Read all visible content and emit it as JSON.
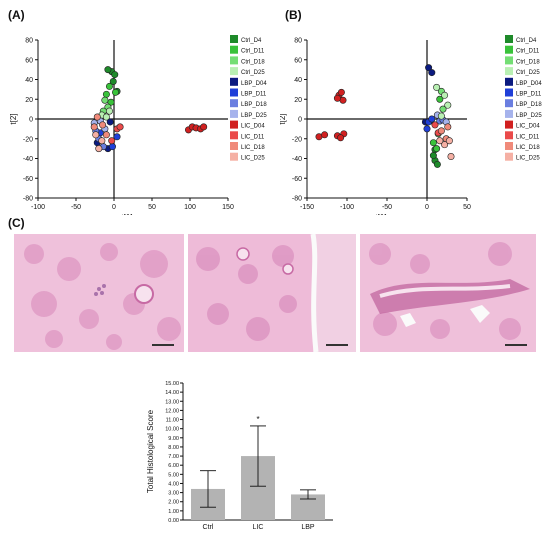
{
  "labels": {
    "a": "(A)",
    "b": "(B)",
    "c": "(C)"
  },
  "colors": {
    "Ctrl_D4": "#1e8a2a",
    "Ctrl_D11": "#39c23a",
    "Ctrl_D18": "#74de74",
    "Ctrl_D25": "#b9f0b3",
    "LBP_D04": "#0b1a80",
    "LBP_D11": "#1f3fd8",
    "LBP_D18": "#6a7ee0",
    "LBP_D25": "#a6b3ec",
    "LIC_D04": "#d12020",
    "LIC_D11": "#ea4a4a",
    "LIC_D18": "#f08a7a",
    "LIC_D25": "#f5b0a4"
  },
  "legend": [
    "Ctrl_D4",
    "Ctrl_D11",
    "Ctrl_D18",
    "Ctrl_D25",
    "LBP_D04",
    "LBP_D11",
    "LBP_D18",
    "LBP_D25",
    "LIC_D04",
    "LIC_D11",
    "LIC_D18",
    "LIC_D25"
  ],
  "chart_data": [
    {
      "type": "scatter",
      "panel": "A",
      "xlabel": "t[1]",
      "ylabel": "t[2]",
      "xlim": [
        -100,
        150
      ],
      "ylim": [
        -80,
        80
      ],
      "xticks": [
        -100,
        -50,
        0,
        50,
        100,
        150
      ],
      "yticks": [
        80,
        60,
        40,
        20,
        0,
        -20,
        -40,
        -60,
        -80
      ],
      "points": [
        {
          "g": "Ctrl_D4",
          "x": -3,
          "y": 48
        },
        {
          "g": "Ctrl_D4",
          "x": -1,
          "y": 38
        },
        {
          "g": "Ctrl_D4",
          "x": 1,
          "y": 45
        },
        {
          "g": "Ctrl_D4",
          "x": -8,
          "y": 50
        },
        {
          "g": "Ctrl_D4",
          "x": 4,
          "y": 28
        },
        {
          "g": "Ctrl_D11",
          "x": -6,
          "y": 33
        },
        {
          "g": "Ctrl_D11",
          "x": 2,
          "y": 27
        },
        {
          "g": "Ctrl_D11",
          "x": -10,
          "y": 25
        },
        {
          "g": "Ctrl_D11",
          "x": -4,
          "y": 17
        },
        {
          "g": "Ctrl_D18",
          "x": -12,
          "y": 19
        },
        {
          "g": "Ctrl_D18",
          "x": -8,
          "y": 12
        },
        {
          "g": "Ctrl_D18",
          "x": -14,
          "y": 8
        },
        {
          "g": "Ctrl_D25",
          "x": -16,
          "y": 4
        },
        {
          "g": "Ctrl_D25",
          "x": -10,
          "y": 2
        },
        {
          "g": "Ctrl_D25",
          "x": -6,
          "y": 8
        },
        {
          "g": "LBP_D04",
          "x": -5,
          "y": -3
        },
        {
          "g": "LBP_D04",
          "x": -22,
          "y": -24
        },
        {
          "g": "LBP_D04",
          "x": -8,
          "y": -30
        },
        {
          "g": "LBP_D11",
          "x": -18,
          "y": -14
        },
        {
          "g": "LBP_D11",
          "x": -2,
          "y": -28
        },
        {
          "g": "LBP_D11",
          "x": 4,
          "y": -18
        },
        {
          "g": "LBP_D18",
          "x": -20,
          "y": -20
        },
        {
          "g": "LBP_D18",
          "x": -14,
          "y": -28
        },
        {
          "g": "LBP_D18",
          "x": -24,
          "y": -12
        },
        {
          "g": "LBP_D25",
          "x": -12,
          "y": -10
        },
        {
          "g": "LBP_D25",
          "x": -26,
          "y": -4
        },
        {
          "g": "LBP_D25",
          "x": -18,
          "y": -2
        },
        {
          "g": "LIC_D04",
          "x": 98,
          "y": -11
        },
        {
          "g": "LIC_D04",
          "x": 103,
          "y": -8
        },
        {
          "g": "LIC_D04",
          "x": 108,
          "y": -9
        },
        {
          "g": "LIC_D04",
          "x": 114,
          "y": -10
        },
        {
          "g": "LIC_D04",
          "x": 118,
          "y": -8
        },
        {
          "g": "LIC_D11",
          "x": 4,
          "y": -10
        },
        {
          "g": "LIC_D11",
          "x": 8,
          "y": -8
        },
        {
          "g": "LIC_D11",
          "x": -3,
          "y": -22
        },
        {
          "g": "LIC_D18",
          "x": -15,
          "y": -6
        },
        {
          "g": "LIC_D18",
          "x": -22,
          "y": 2
        },
        {
          "g": "LIC_D18",
          "x": -10,
          "y": -16
        },
        {
          "g": "LIC_D18",
          "x": -26,
          "y": -8
        },
        {
          "g": "LIC_D25",
          "x": -20,
          "y": -30
        },
        {
          "g": "LIC_D25",
          "x": -16,
          "y": -22
        },
        {
          "g": "LIC_D25",
          "x": -24,
          "y": -16
        }
      ]
    },
    {
      "type": "scatter",
      "panel": "B",
      "xlabel": "t[1]",
      "ylabel": "t[2]",
      "xlim": [
        -150,
        50
      ],
      "ylim": [
        -80,
        80
      ],
      "xticks": [
        -150,
        -100,
        -50,
        0,
        50
      ],
      "yticks": [
        80,
        60,
        40,
        20,
        0,
        -20,
        -40,
        -60,
        -80
      ],
      "points": [
        {
          "g": "LIC_D04",
          "x": -110,
          "y": 24
        },
        {
          "g": "LIC_D04",
          "x": -107,
          "y": 27
        },
        {
          "g": "LIC_D04",
          "x": -105,
          "y": 19
        },
        {
          "g": "LIC_D04",
          "x": -112,
          "y": 21
        },
        {
          "g": "LIC_D04",
          "x": -135,
          "y": -18
        },
        {
          "g": "LIC_D04",
          "x": -128,
          "y": -16
        },
        {
          "g": "LIC_D04",
          "x": -112,
          "y": -17
        },
        {
          "g": "LIC_D04",
          "x": -104,
          "y": -15
        },
        {
          "g": "LIC_D04",
          "x": -108,
          "y": -19
        },
        {
          "g": "LBP_D04",
          "x": 2,
          "y": 52
        },
        {
          "g": "LBP_D04",
          "x": 6,
          "y": 47
        },
        {
          "g": "LBP_D04",
          "x": 4,
          "y": -2
        },
        {
          "g": "LBP_D04",
          "x": -2,
          "y": -3
        },
        {
          "g": "LBP_D11",
          "x": 2,
          "y": -3
        },
        {
          "g": "LBP_D11",
          "x": 6,
          "y": 0
        },
        {
          "g": "LBP_D11",
          "x": 0,
          "y": -10
        },
        {
          "g": "LBP_D18",
          "x": 16,
          "y": -2
        },
        {
          "g": "LBP_D18",
          "x": 20,
          "y": -1
        },
        {
          "g": "LBP_D25",
          "x": 24,
          "y": -3
        },
        {
          "g": "LBP_D25",
          "x": 13,
          "y": 4
        },
        {
          "g": "Ctrl_D4",
          "x": 10,
          "y": -42
        },
        {
          "g": "Ctrl_D4",
          "x": 8,
          "y": -37
        },
        {
          "g": "Ctrl_D4",
          "x": 13,
          "y": -46
        },
        {
          "g": "Ctrl_D4",
          "x": 10,
          "y": -31
        },
        {
          "g": "Ctrl_D11",
          "x": 16,
          "y": 20
        },
        {
          "g": "Ctrl_D11",
          "x": 12,
          "y": -30
        },
        {
          "g": "Ctrl_D11",
          "x": 8,
          "y": -24
        },
        {
          "g": "Ctrl_D18",
          "x": 18,
          "y": 28
        },
        {
          "g": "Ctrl_D18",
          "x": 20,
          "y": 10
        },
        {
          "g": "Ctrl_D18",
          "x": 14,
          "y": -15
        },
        {
          "g": "Ctrl_D25",
          "x": 12,
          "y": 32
        },
        {
          "g": "Ctrl_D25",
          "x": 22,
          "y": 24
        },
        {
          "g": "Ctrl_D25",
          "x": 26,
          "y": 14
        },
        {
          "g": "Ctrl_D25",
          "x": 18,
          "y": 3
        },
        {
          "g": "LIC_D11",
          "x": 14,
          "y": -14
        },
        {
          "g": "LIC_D11",
          "x": 10,
          "y": -6
        },
        {
          "g": "LIC_D18",
          "x": 24,
          "y": -20
        },
        {
          "g": "LIC_D18",
          "x": 18,
          "y": -12
        },
        {
          "g": "LIC_D18",
          "x": 26,
          "y": -8
        },
        {
          "g": "LIC_D25",
          "x": 22,
          "y": -26
        },
        {
          "g": "LIC_D25",
          "x": 28,
          "y": -22
        },
        {
          "g": "LIC_D25",
          "x": 16,
          "y": -22
        },
        {
          "g": "LIC_D25",
          "x": 30,
          "y": -38
        }
      ]
    },
    {
      "type": "bar",
      "panel": "C",
      "categories": [
        "Ctrl",
        "LIC",
        "LBP"
      ],
      "values": [
        3.4,
        7.0,
        2.8
      ],
      "errors": [
        2.0,
        3.3,
        0.5
      ],
      "ylabel": "Total Histological Score",
      "ylim": [
        0,
        15
      ],
      "yticks": [
        "0.00",
        "1.00",
        "2.00",
        "3.00",
        "4.00",
        "5.00",
        "6.00",
        "7.00",
        "8.00",
        "9.00",
        "10.00",
        "11.00",
        "12.00",
        "13.00",
        "14.00",
        "15.00"
      ],
      "annotation": "*",
      "bar_color": "#b3b3b3"
    }
  ]
}
